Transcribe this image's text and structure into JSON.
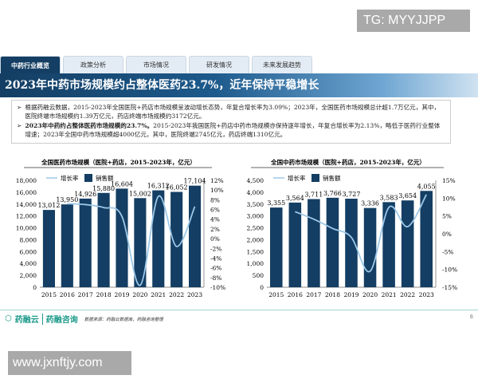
{
  "watermark_top": "TG: MYYJJPP",
  "watermark_bottom": "www.jxnftjy.com",
  "tabs": [
    "中药行业概览",
    "政策分析",
    "市场情况",
    "研发情况",
    "未来发展趋势"
  ],
  "title": "2023年中药市场规模约占整体医药23.7%，近年保持平稳增长",
  "bullets": [
    {
      "bold": "",
      "text": "根据药融云数据，2015-2023年全国医院+药店市场规模呈波动增长态势，年复合增长率为3.09%；2023年，全国医药市场规模总计超1.7万亿元，其中，医院终端市场规模约1.39万亿元，药店终端市场规模约3172亿元。"
    },
    {
      "bold": "2023年中药约占整体医药市场规模的23.7%。",
      "text": "2015-2023年我国医院+药店中药市场规模亦保持逐年增长，年复合增长率为2.13%，略低于医药行业整体增速；2023年全国中药市场规模超4000亿元，其中，医院终端2745亿元，药店终端1310亿元。"
    }
  ],
  "footer": {
    "logo1": "药融云",
    "logo2": "药融咨询",
    "source": "数据来源：药融云数据库，药融咨询整理",
    "page": "6"
  },
  "colors": {
    "bar": "#143e63",
    "line": "#9cc8e8",
    "accent": "#1d9a8a"
  },
  "chart_data": [
    {
      "type": "bar",
      "title": "全国医药市场规模（医院+药店，2015-2023年，亿元）",
      "categories": [
        "2015",
        "2016",
        "2017",
        "2018",
        "2019",
        "2020",
        "2021",
        "2022",
        "2023"
      ],
      "series": [
        {
          "name": "销售额",
          "type": "bar",
          "axis": "left",
          "values": [
            13012,
            13950,
            14926,
            15880,
            16604,
            15002,
            16312,
            16052,
            17104
          ]
        },
        {
          "name": "增长率",
          "type": "line",
          "axis": "right",
          "values": [
            null,
            7.2,
            7.0,
            6.4,
            4.6,
            -9.6,
            8.7,
            -1.6,
            6.6
          ]
        }
      ],
      "ylim": [
        0,
        18000
      ],
      "yticks": [
        0,
        2000,
        4000,
        6000,
        8000,
        10000,
        12000,
        14000,
        16000,
        18000
      ],
      "y2lim": [
        -10,
        12
      ],
      "y2ticks": [
        -10,
        -8,
        -6,
        -4,
        -2,
        0,
        2,
        4,
        6,
        8,
        10,
        12
      ],
      "legend": "top-left"
    },
    {
      "type": "bar",
      "title": "全国中药市场规模（医院+药店，2015-2023年，亿元）",
      "categories": [
        "2015",
        "2016",
        "2017",
        "2018",
        "2019",
        "2020",
        "2021",
        "2022",
        "2023"
      ],
      "series": [
        {
          "name": "销售额",
          "type": "bar",
          "axis": "left",
          "values": [
            3355,
            3564,
            3711,
            3766,
            3727,
            3336,
            3583,
            3654,
            4055
          ]
        },
        {
          "name": "增长率",
          "type": "line",
          "axis": "right",
          "values": [
            null,
            6.2,
            4.1,
            1.5,
            -1.0,
            -10.5,
            7.4,
            2.0,
            11.0
          ]
        }
      ],
      "ylim": [
        0,
        4500
      ],
      "yticks": [
        0,
        500,
        1000,
        1500,
        2000,
        2500,
        3000,
        3500,
        4000,
        4500
      ],
      "y2lim": [
        -15,
        15
      ],
      "y2ticks": [
        -15,
        -10,
        -5,
        0,
        5,
        10,
        15
      ],
      "legend": "top-left"
    }
  ]
}
